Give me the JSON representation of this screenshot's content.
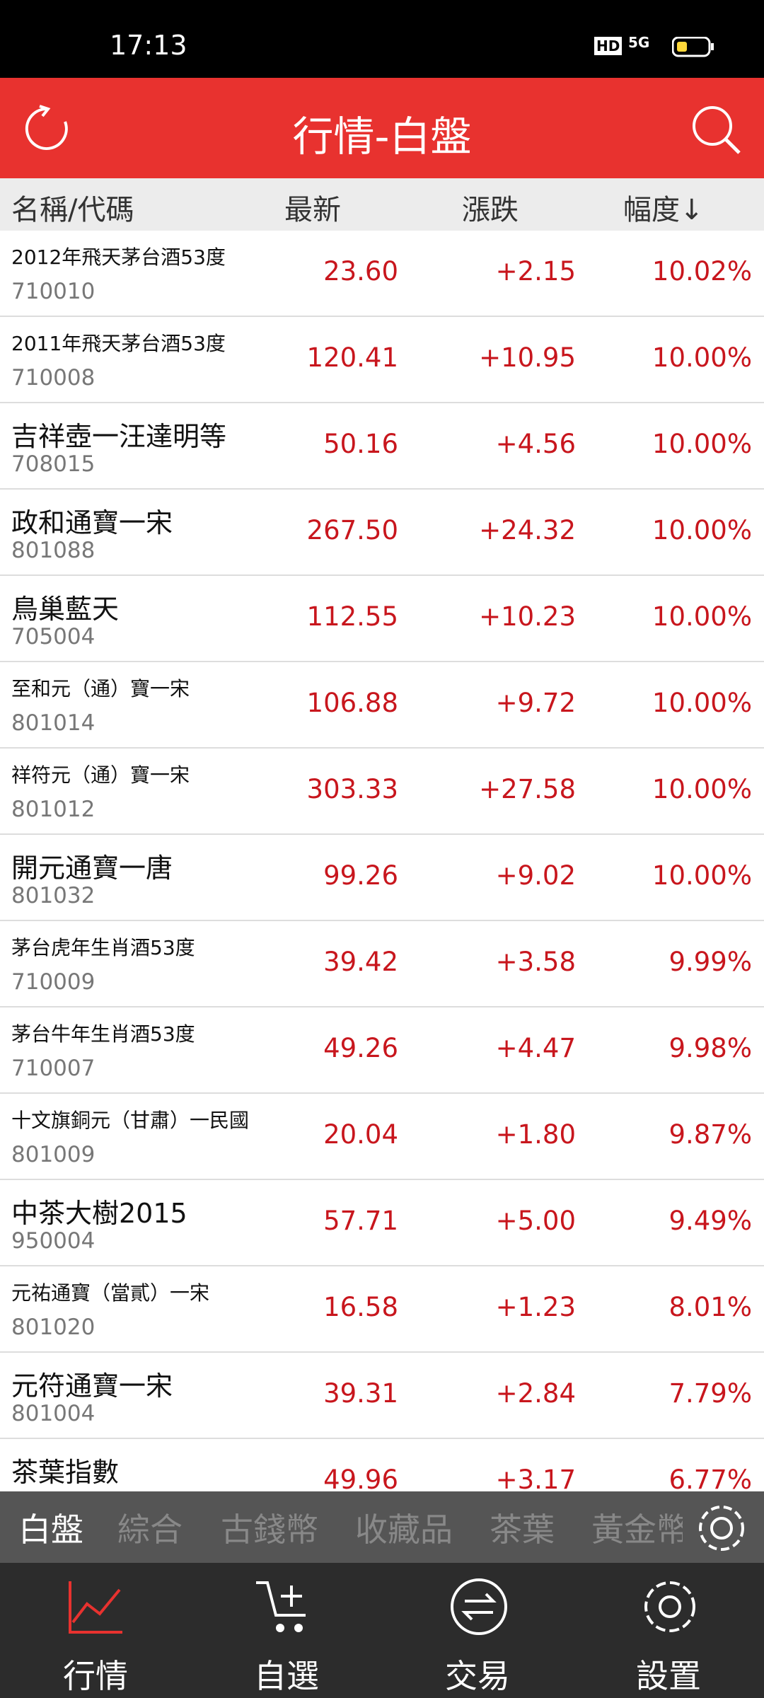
{
  "status_bar": {
    "time": "17:13",
    "hd": "HD",
    "network": "5G"
  },
  "header": {
    "title": "行情-白盤"
  },
  "columns": [
    "名稱/代碼",
    "最新",
    "漲跌",
    "幅度↓"
  ],
  "rows": [
    [
      "2012年飛天茅台酒53度",
      "710010",
      "23.60",
      "+2.15",
      "10.02%"
    ],
    [
      "2011年飛天茅台酒53度",
      "710008",
      "120.41",
      "+10.95",
      "10.00%"
    ],
    [
      "吉祥壺一汪達明等",
      "708015",
      "50.16",
      "+4.56",
      "10.00%"
    ],
    [
      "政和通寶一宋",
      "801088",
      "267.50",
      "+24.32",
      "10.00%"
    ],
    [
      "鳥巢藍天",
      "705004",
      "112.55",
      "+10.23",
      "10.00%"
    ],
    [
      "至和元（通）寶一宋",
      "801014",
      "106.88",
      "+9.72",
      "10.00%"
    ],
    [
      "祥符元（通）寶一宋",
      "801012",
      "303.33",
      "+27.58",
      "10.00%"
    ],
    [
      "開元通寶一唐",
      "801032",
      "99.26",
      "+9.02",
      "10.00%"
    ],
    [
      "茅台虎年生肖酒53度",
      "710009",
      "39.42",
      "+3.58",
      "9.99%"
    ],
    [
      "茅台牛年生肖酒53度",
      "710007",
      "49.26",
      "+4.47",
      "9.98%"
    ],
    [
      "十文旗銅元（甘肅）一民國",
      "801009",
      "20.04",
      "+1.80",
      "9.87%"
    ],
    [
      "中茶大樹2015",
      "950004",
      "57.71",
      "+5.00",
      "9.49%"
    ],
    [
      "元祐通寶（當貳）一宋",
      "801020",
      "16.58",
      "+1.23",
      "8.01%"
    ],
    [
      "元符通寶一宋",
      "801004",
      "39.31",
      "+2.84",
      "7.79%"
    ],
    [
      "茶葉指數",
      "",
      "49.96",
      "+3.17",
      "6.77%"
    ]
  ],
  "tabs": [
    "白盤",
    "綜合",
    "古錢幣",
    "收藏品",
    "茶葉",
    "黃金幣"
  ],
  "nav": [
    "行情",
    "自選",
    "交易",
    "設置"
  ]
}
